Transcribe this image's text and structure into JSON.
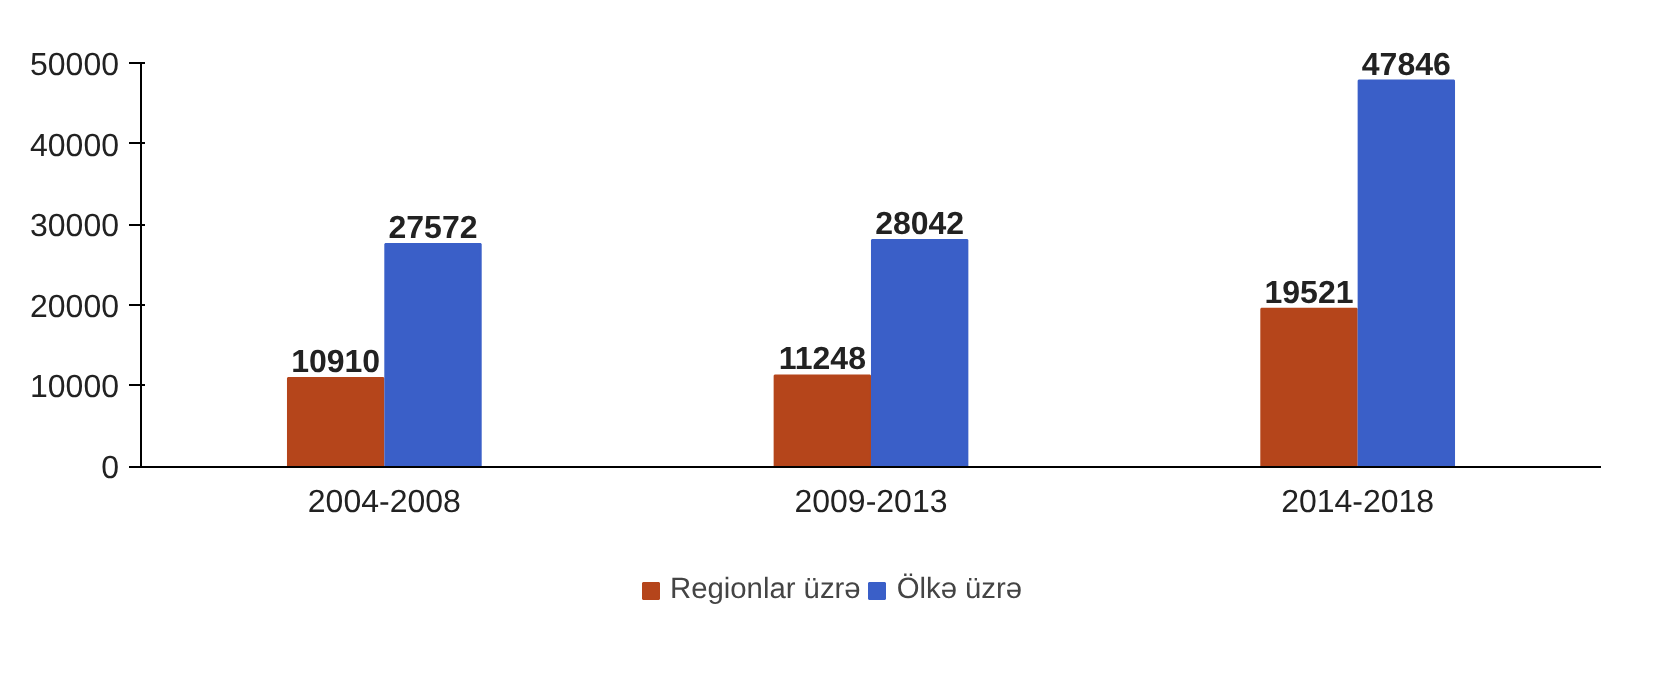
{
  "chart_data": {
    "type": "bar",
    "categories": [
      "2004-2008",
      "2009-2013",
      "2014-2018"
    ],
    "series": [
      {
        "name": "Regionlar üzrə",
        "color": "#b5451b",
        "values": [
          10910,
          11248,
          19521
        ]
      },
      {
        "name": "Ölkə üzrə",
        "color": "#3a5fc8",
        "values": [
          27572,
          28042,
          47846
        ]
      }
    ],
    "ylim": [
      0,
      50000
    ],
    "yticks": [
      0,
      10000,
      20000,
      30000,
      40000,
      50000
    ],
    "data_labels": true,
    "legend": "bottom",
    "grid": false
  }
}
